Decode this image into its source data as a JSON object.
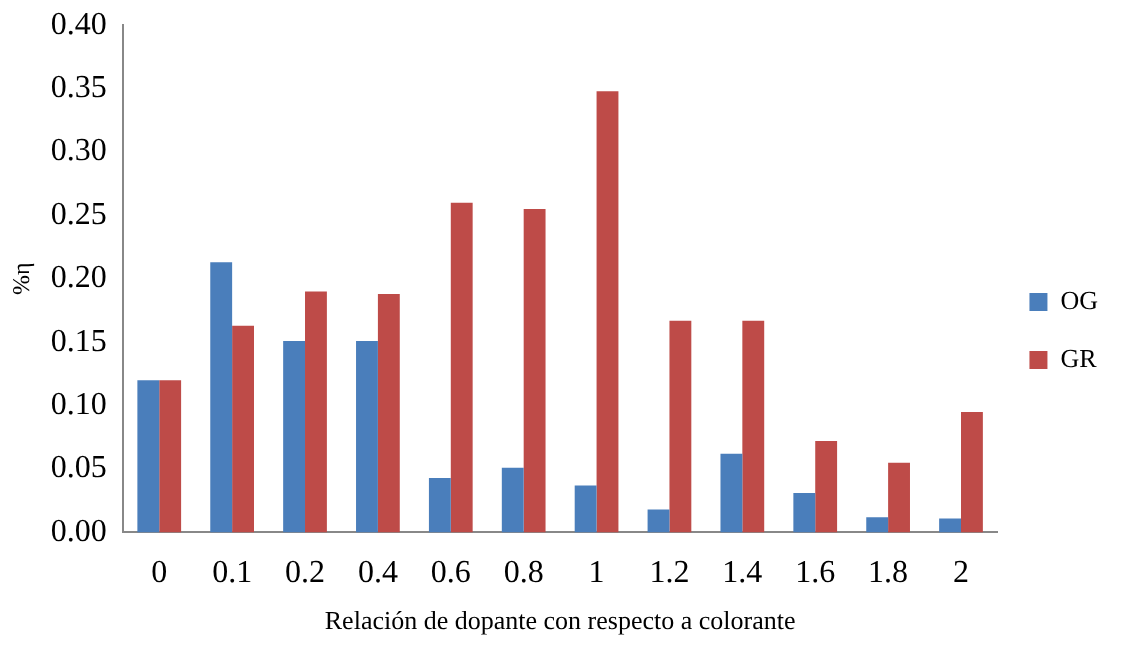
{
  "chart_data": {
    "type": "bar",
    "xlabel": "Relación de dopante con respecto a colorante",
    "ylabel": "%η",
    "categories": [
      "0",
      "0.1",
      "0.2",
      "0.4",
      "0.6",
      "0.8",
      "1",
      "1.2",
      "1.4",
      "1.6",
      "1.8",
      "2"
    ],
    "series": [
      {
        "name": "OG",
        "color": "#4a7ebb",
        "values": [
          0.12,
          0.213,
          0.151,
          0.151,
          0.043,
          0.051,
          0.037,
          0.018,
          0.062,
          0.031,
          0.012,
          0.011
        ]
      },
      {
        "name": "GR",
        "color": "#be4b48",
        "values": [
          0.12,
          0.163,
          0.19,
          0.188,
          0.26,
          0.255,
          0.348,
          0.167,
          0.167,
          0.072,
          0.055,
          0.095
        ]
      }
    ],
    "ylim": [
      0,
      0.4
    ],
    "yticks": [
      {
        "value": 0,
        "label": "0.00"
      },
      {
        "value": 0.05,
        "label": "0.05"
      },
      {
        "value": 0.1,
        "label": "0.10"
      },
      {
        "value": 0.15,
        "label": "0.15"
      },
      {
        "value": 0.2,
        "label": "0.20"
      },
      {
        "value": 0.25,
        "label": "0.25"
      },
      {
        "value": 0.3,
        "label": "0.30"
      },
      {
        "value": 0.35,
        "label": "0.35"
      },
      {
        "value": 0.4,
        "label": "0.40"
      }
    ],
    "grid": false,
    "legend": "right"
  }
}
